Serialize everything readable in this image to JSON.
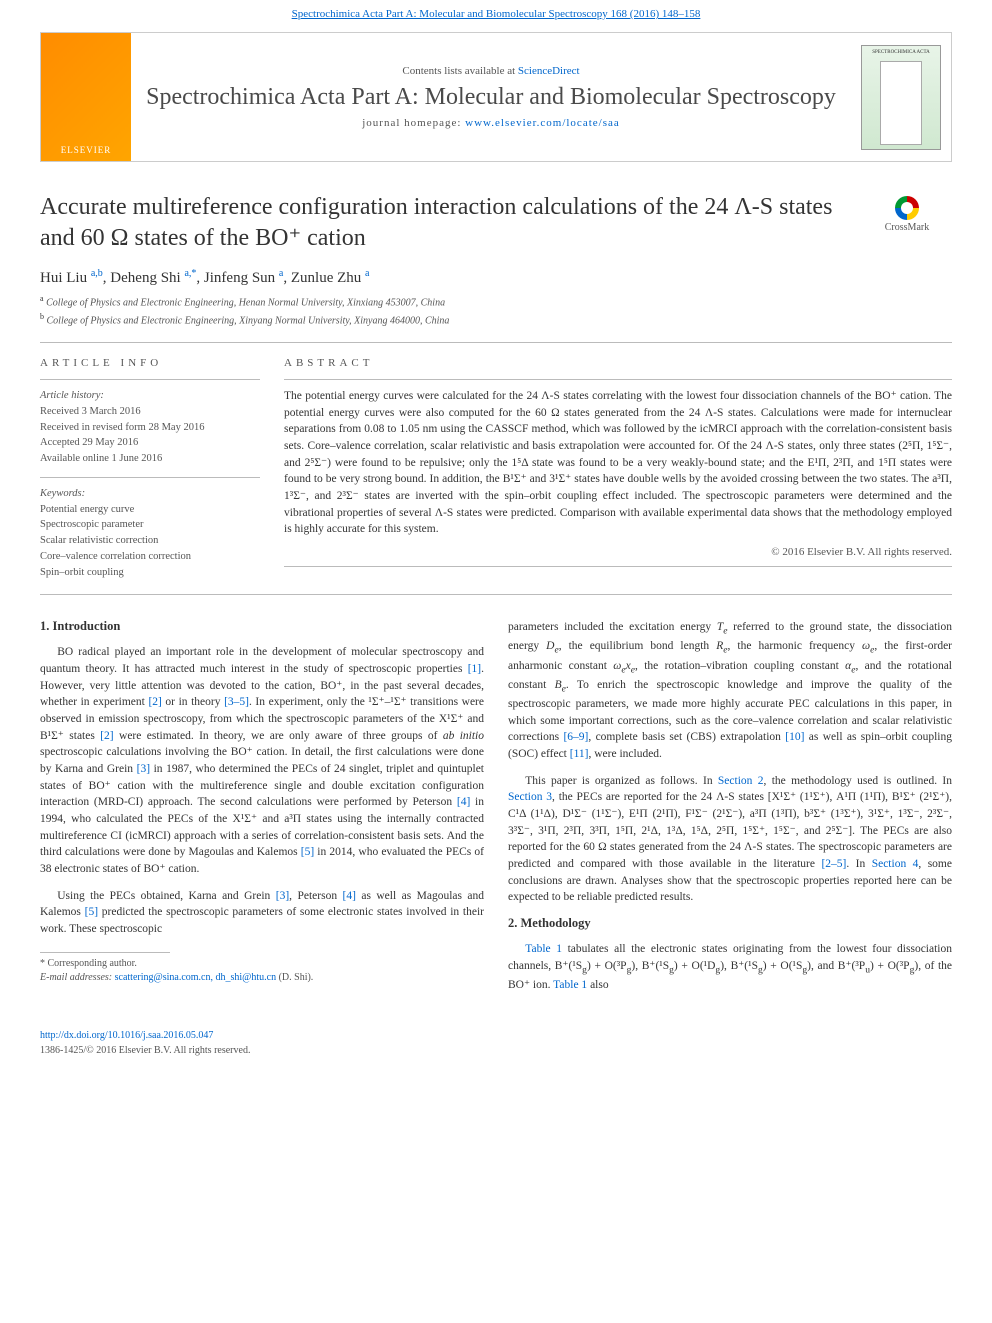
{
  "top_link": {
    "prefix": "",
    "journal_name": "Spectrochimica Acta Part A: Molecular and Biomolecular Spectroscopy 168 (2016) 148–158"
  },
  "header": {
    "publisher_logo": "ELSEVIER",
    "contents_prefix": "Contents lists available at ",
    "contents_link": "ScienceDirect",
    "journal_title": "Spectrochimica Acta Part A: Molecular and Biomolecular Spectroscopy",
    "homepage_label": "journal homepage: ",
    "homepage_url": "www.elsevier.com/locate/saa",
    "cover_text": "SPECTROCHIMICA ACTA"
  },
  "crossmark_label": "CrossMark",
  "article": {
    "title": "Accurate multireference configuration interaction calculations of the 24 Λ-S states and 60 Ω states of the BO⁺ cation",
    "authors_html": "Hui Liu <sup class='aff-sup'>a,b</sup>, Deheng Shi <sup class='aff-sup'>a,*</sup>, Jinfeng Sun <sup class='aff-sup'>a</sup>, Zunlue Zhu <sup class='aff-sup'>a</sup>",
    "affiliations": [
      "College of Physics and Electronic Engineering, Henan Normal University, Xinxiang 453007, China",
      "College of Physics and Electronic Engineering, Xinyang Normal University, Xinyang 464000, China"
    ]
  },
  "article_info": {
    "heading": "ARTICLE INFO",
    "history_label": "Article history:",
    "history": [
      "Received 3 March 2016",
      "Received in revised form 28 May 2016",
      "Accepted 29 May 2016",
      "Available online 1 June 2016"
    ],
    "keywords_label": "Keywords:",
    "keywords": [
      "Potential energy curve",
      "Spectroscopic parameter",
      "Scalar relativistic correction",
      "Core–valence correlation correction",
      "Spin–orbit coupling"
    ]
  },
  "abstract": {
    "heading": "ABSTRACT",
    "text": "The potential energy curves were calculated for the 24 Λ-S states correlating with the lowest four dissociation channels of the BO⁺ cation. The potential energy curves were also computed for the 60 Ω states generated from the 24 Λ-S states. Calculations were made for internuclear separations from 0.08 to 1.05 nm using the CASSCF method, which was followed by the icMRCI approach with the correlation-consistent basis sets. Core–valence correlation, scalar relativistic and basis extrapolation were accounted for. Of the 24 Λ-S states, only three states (2⁵Π, 1⁵Σ⁻, and 2⁵Σ⁻) were found to be repulsive; only the 1⁵Δ state was found to be a very weakly-bound state; and the E¹Π, 2³Π, and 1⁵Π states were found to be very strong bound. In addition, the B¹Σ⁺ and 3¹Σ⁺ states have double wells by the avoided crossing between the two states. The a³Π, 1³Σ⁻, and 2³Σ⁻ states are inverted with the spin–orbit coupling effect included. The spectroscopic parameters were determined and the vibrational properties of several Λ-S states were predicted. Comparison with available experimental data shows that the methodology employed is highly accurate for this system.",
    "copyright": "© 2016 Elsevier B.V. All rights reserved."
  },
  "body": {
    "intro_heading": "1. Introduction",
    "left_paragraphs": [
      "BO radical played an important role in the development of molecular spectroscopy and quantum theory. It has attracted much interest in the study of spectroscopic properties <span class='ref-link'>[1]</span>. However, very little attention was devoted to the cation, BO⁺, in the past several decades, whether in experiment <span class='ref-link'>[2]</span> or in theory <span class='ref-link'>[3–5]</span>. In experiment, only the ¹Σ⁺–¹Σ⁺ transitions were observed in emission spectroscopy, from which the spectroscopic parameters of the X¹Σ⁺ and B¹Σ⁺ states <span class='ref-link'>[2]</span> were estimated. In theory, we are only aware of three groups of <i>ab initio</i> spectroscopic calculations involving the BO⁺ cation. In detail, the first calculations were done by Karna and Grein <span class='ref-link'>[3]</span> in 1987, who determined the PECs of 24 singlet, triplet and quintuplet states of BO⁺ cation with the multireference single and double excitation configuration interaction (MRD-CI) approach. The second calculations were performed by Peterson <span class='ref-link'>[4]</span> in 1994, who calculated the PECs of the X¹Σ⁺ and a³Π states using the internally contracted multireference CI (icMRCI) approach with a series of correlation-consistent basis sets. And the third calculations were done by Magoulas and Kalemos <span class='ref-link'>[5]</span> in 2014, who evaluated the PECs of 38 electronic states of BO⁺ cation.",
      "Using the PECs obtained, Karna and Grein <span class='ref-link'>[3]</span>, Peterson <span class='ref-link'>[4]</span> as well as Magoulas and Kalemos <span class='ref-link'>[5]</span> predicted the spectroscopic parameters of some electronic states involved in their work. These spectroscopic"
    ],
    "right_paragraphs": [
      "parameters included the excitation energy <i>T<sub>e</sub></i> referred to the ground state, the dissociation energy <i>D<sub>e</sub></i>, the equilibrium bond length <i>R<sub>e</sub></i>, the harmonic frequency <i>ω<sub>e</sub></i>, the first-order anharmonic constant <i>ω<sub>e</sub>x<sub>e</sub></i>, the rotation–vibration coupling constant <i>α<sub>e</sub></i>, and the rotational constant <i>B<sub>e</sub></i>. To enrich the spectroscopic knowledge and improve the quality of the spectroscopic parameters, we made more highly accurate PEC calculations in this paper, in which some important corrections, such as the core–valence correlation and scalar relativistic corrections <span class='ref-link'>[6–9]</span>, complete basis set (CBS) extrapolation <span class='ref-link'>[10]</span> as well as spin–orbit coupling (SOC) effect <span class='ref-link'>[11]</span>, were included.",
      "This paper is organized as follows. In <span class='ref-link'>Section 2</span>, the methodology used is outlined. In <span class='ref-link'>Section 3</span>, the PECs are reported for the 24 Λ-S states [X¹Σ⁺ (1¹Σ⁺), A¹Π (1¹Π), B¹Σ⁺ (2¹Σ⁺), C¹Δ (1¹Δ), D¹Σ⁻ (1¹Σ⁻), E¹Π (2¹Π), F¹Σ⁻ (2¹Σ⁻), a³Π (1³Π), b³Σ⁺ (1³Σ⁺), 3¹Σ⁺, 1³Σ⁻, 2³Σ⁻, 3³Σ⁻, 3¹Π, 2³Π, 3³Π, 1⁵Π, 2¹Δ, 1³Δ, 1⁵Δ, 2⁵Π, 1⁵Σ⁺, 1⁵Σ⁻, and 2⁵Σ⁻]. The PECs are also reported for the 60 Ω states generated from the 24 Λ-S states. The spectroscopic parameters are predicted and compared with those available in the literature <span class='ref-link'>[2–5]</span>. In <span class='ref-link'>Section 4</span>, some conclusions are drawn. Analyses show that the spectroscopic properties reported here can be expected to be reliable predicted results."
    ],
    "method_heading": "2. Methodology",
    "method_paragraph": "<span class='ref-link'>Table 1</span> tabulates all the electronic states originating from the lowest four dissociation channels, B⁺(¹S<sub>g</sub>) + O(³P<sub>g</sub>), B⁺(¹S<sub>g</sub>) + O(¹D<sub>g</sub>), B⁺(¹S<sub>g</sub>) + O(¹S<sub>g</sub>), and B⁺(³P<sub>u</sub>) + O(³P<sub>g</sub>), of the BO⁺ ion. <span class='ref-link'>Table 1</span> also"
  },
  "footnote": {
    "corresponding": "* Corresponding author.",
    "email_label": "E-mail addresses: ",
    "emails": "scattering@sina.com.cn, dh_shi@htu.cn",
    "email_author": " (D. Shi)."
  },
  "footer": {
    "doi": "http://dx.doi.org/10.1016/j.saa.2016.05.047",
    "issn": "1386-1425/© 2016 Elsevier B.V. All rights reserved."
  }
}
